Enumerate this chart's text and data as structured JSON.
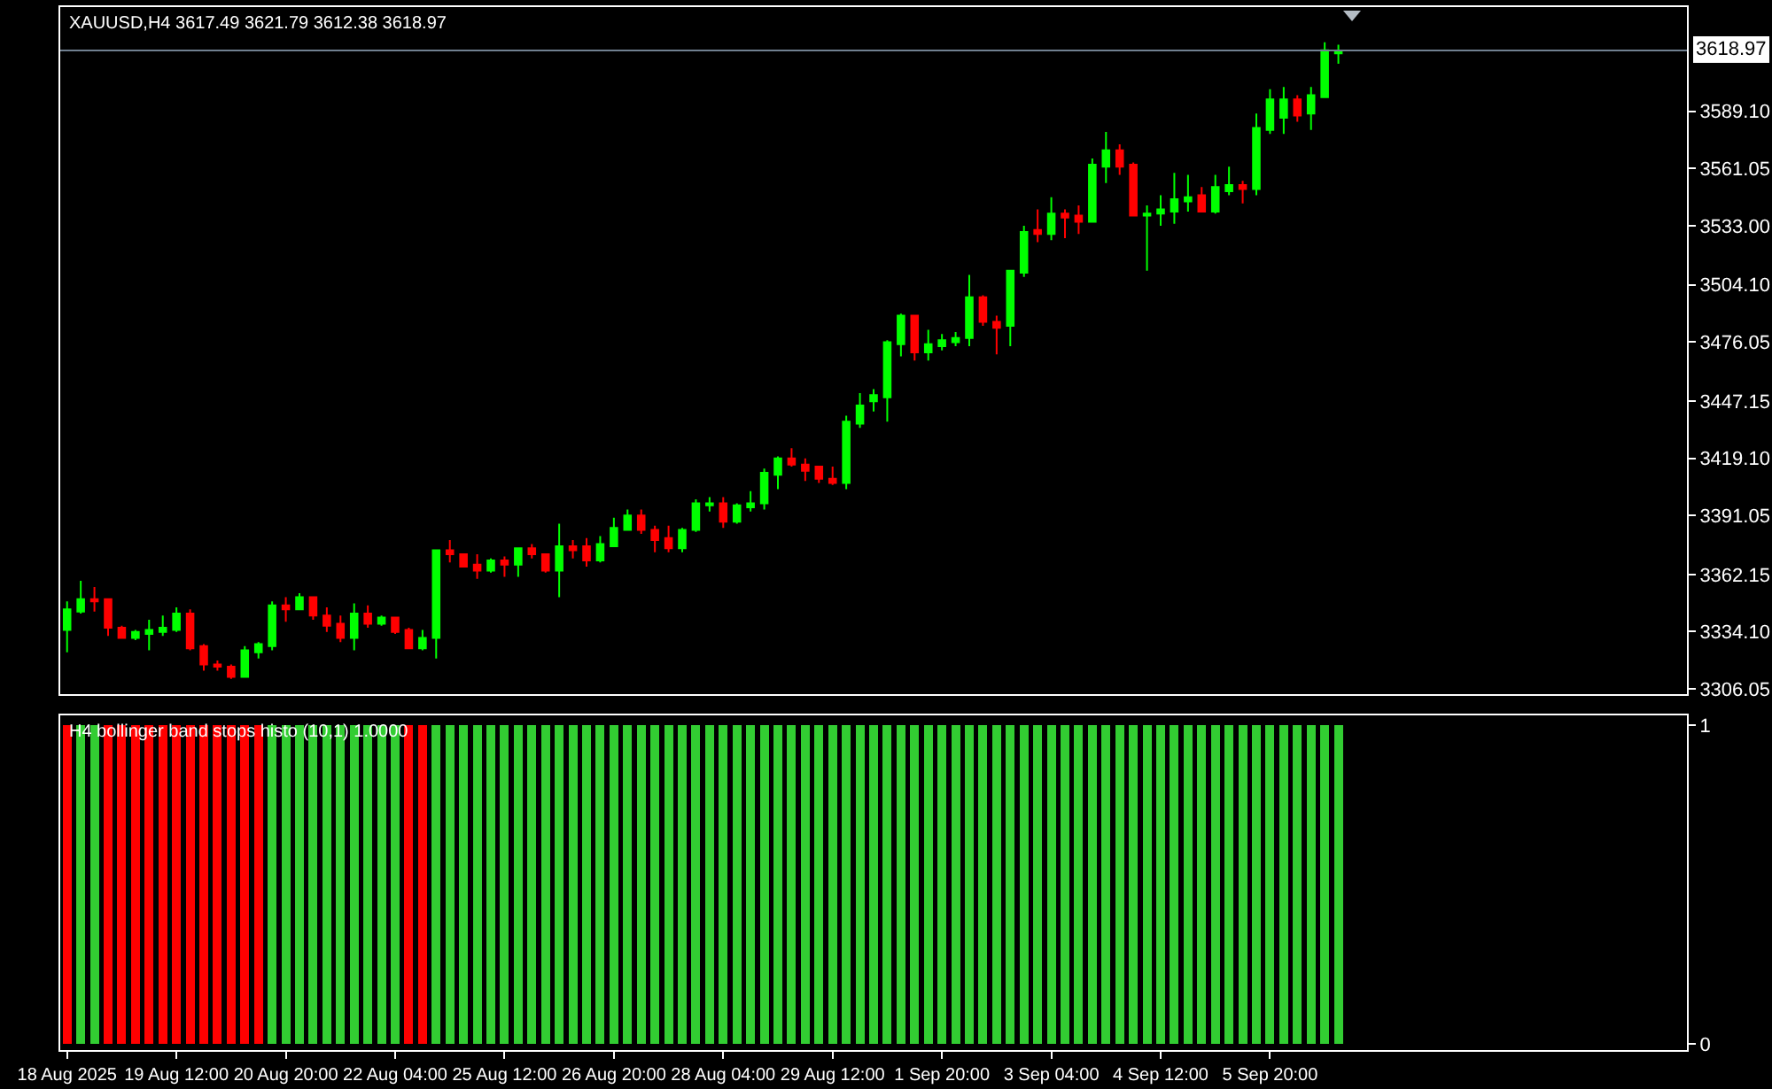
{
  "chart_data": [
    {
      "type": "candlestick",
      "title": "XAUUSD,H4 3617.49 3621.79 3612.38 3618.97",
      "categories": [
        null,
        null,
        null,
        null,
        null,
        null,
        null,
        null,
        null,
        null,
        null,
        null,
        null,
        null,
        null,
        null,
        null,
        null,
        null,
        null,
        null,
        null,
        null,
        null,
        null,
        null,
        null,
        null,
        null,
        null,
        null,
        null,
        null,
        null,
        null,
        null,
        null,
        null,
        null,
        null,
        null,
        null,
        null,
        null,
        null,
        null,
        null,
        null,
        null,
        null,
        null,
        null,
        null,
        null,
        null,
        null,
        null,
        null,
        null,
        null,
        null,
        null,
        null,
        null,
        null,
        null,
        null,
        null,
        null,
        null,
        null,
        null,
        null,
        null,
        null,
        null,
        null,
        null,
        null,
        null,
        null,
        null,
        null,
        null,
        null,
        null,
        null,
        null,
        null,
        null,
        null,
        null,
        null,
        null,
        null,
        null,
        null,
        null,
        null,
        null,
        null,
        null,
        null,
        null,
        null,
        null,
        null,
        null,
        null,
        null,
        null,
        null,
        null,
        null,
        null,
        null,
        null,
        null,
        null
      ],
      "ohlc": [
        [
          3335,
          3349,
          3324,
          3345
        ],
        [
          3344,
          3359,
          3343,
          3350
        ],
        [
          3350,
          3356,
          3344,
          3349
        ],
        [
          3350,
          3350,
          3332,
          3336
        ],
        [
          3336,
          3337,
          3331,
          3331
        ],
        [
          3331,
          3335,
          3330,
          3334
        ],
        [
          3333,
          3340,
          3325,
          3335
        ],
        [
          3334,
          3342,
          3332,
          3336
        ],
        [
          3335,
          3346,
          3334,
          3343
        ],
        [
          3343,
          3345,
          3325,
          3326
        ],
        [
          3327,
          3328,
          3315,
          3318
        ],
        [
          3318,
          3320,
          3315,
          3317
        ],
        [
          3317,
          3318,
          3311,
          3312
        ],
        [
          3312,
          3327,
          3312,
          3325
        ],
        [
          3324,
          3329,
          3321,
          3328
        ],
        [
          3327,
          3349,
          3325,
          3347
        ],
        [
          3347,
          3351,
          3339,
          3345
        ],
        [
          3345,
          3353,
          3345,
          3351
        ],
        [
          3351,
          3351,
          3340,
          3342
        ],
        [
          3342,
          3346,
          3334,
          3337
        ],
        [
          3338,
          3342,
          3329,
          3331
        ],
        [
          3331,
          3348,
          3325,
          3343
        ],
        [
          3343,
          3347,
          3336,
          3338
        ],
        [
          3338,
          3342,
          3337,
          3341
        ],
        [
          3341,
          3341,
          3333,
          3334
        ],
        [
          3335,
          3336,
          3326,
          3326
        ],
        [
          3326,
          3335,
          3325,
          3331
        ],
        [
          3331,
          3374,
          3321,
          3374
        ],
        [
          3374,
          3379,
          3368,
          3372
        ],
        [
          3372,
          3372,
          3366,
          3366
        ],
        [
          3367,
          3372,
          3360,
          3364
        ],
        [
          3364,
          3370,
          3363,
          3369
        ],
        [
          3369,
          3371,
          3361,
          3367
        ],
        [
          3367,
          3375,
          3361,
          3375
        ],
        [
          3375,
          3377,
          3370,
          3372
        ],
        [
          3372,
          3372,
          3363,
          3364
        ],
        [
          3364,
          3387,
          3351,
          3376
        ],
        [
          3376,
          3379,
          3370,
          3374
        ],
        [
          3376,
          3380,
          3366,
          3369
        ],
        [
          3369,
          3381,
          3368,
          3377
        ],
        [
          3376,
          3390,
          3376,
          3385
        ],
        [
          3384,
          3394,
          3384,
          3391
        ],
        [
          3391,
          3394,
          3382,
          3384
        ],
        [
          3384,
          3386,
          3373,
          3379
        ],
        [
          3380,
          3386,
          3373,
          3375
        ],
        [
          3375,
          3385,
          3373,
          3384
        ],
        [
          3384,
          3399,
          3383,
          3397
        ],
        [
          3396,
          3400,
          3393,
          3397
        ],
        [
          3397,
          3400,
          3385,
          3388
        ],
        [
          3388,
          3397,
          3387,
          3396
        ],
        [
          3395,
          3403,
          3393,
          3397
        ],
        [
          3397,
          3414,
          3394,
          3412
        ],
        [
          3411,
          3420,
          3404,
          3419
        ],
        [
          3419,
          3424,
          3415,
          3416
        ],
        [
          3416,
          3419,
          3408,
          3413
        ],
        [
          3415,
          3415,
          3407,
          3409
        ],
        [
          3409,
          3415,
          3406,
          3407
        ],
        [
          3407,
          3440,
          3404,
          3437
        ],
        [
          3436,
          3451,
          3434,
          3445
        ],
        [
          3447,
          3453,
          3442,
          3450
        ],
        [
          3449,
          3477,
          3437,
          3476
        ],
        [
          3475,
          3490,
          3469,
          3489
        ],
        [
          3489,
          3489,
          3467,
          3471
        ],
        [
          3471,
          3482,
          3467,
          3475
        ],
        [
          3474,
          3480,
          3472,
          3477
        ],
        [
          3476,
          3481,
          3474,
          3478
        ],
        [
          3478,
          3509,
          3474,
          3498
        ],
        [
          3498,
          3499,
          3484,
          3486
        ],
        [
          3486,
          3489,
          3470,
          3483
        ],
        [
          3484,
          3511,
          3474,
          3511
        ],
        [
          3510,
          3533,
          3508,
          3530
        ],
        [
          3531,
          3541,
          3525,
          3529
        ],
        [
          3529,
          3547,
          3526,
          3539
        ],
        [
          3539,
          3541,
          3527,
          3537
        ],
        [
          3538,
          3543,
          3529,
          3535
        ],
        [
          3535,
          3566,
          3535,
          3563
        ],
        [
          3562,
          3579,
          3554,
          3570
        ],
        [
          3570,
          3573,
          3558,
          3562
        ],
        [
          3563,
          3564,
          3538,
          3538
        ],
        [
          3538,
          3543,
          3511,
          3539
        ],
        [
          3539,
          3548,
          3533,
          3541
        ],
        [
          3540,
          3559,
          3534,
          3546
        ],
        [
          3545,
          3558,
          3540,
          3547
        ],
        [
          3548,
          3552,
          3540,
          3540
        ],
        [
          3540,
          3558,
          3539,
          3552
        ],
        [
          3550,
          3562,
          3548,
          3553
        ],
        [
          3553,
          3555,
          3544,
          3551
        ],
        [
          3551,
          3588,
          3548,
          3581
        ],
        [
          3580,
          3600,
          3578,
          3595
        ],
        [
          3586,
          3601,
          3578,
          3595
        ],
        [
          3595,
          3597,
          3584,
          3587
        ],
        [
          3588,
          3601,
          3580,
          3597
        ],
        [
          3596,
          3623,
          3596,
          3619
        ],
        [
          3617.49,
          3621.79,
          3612.38,
          3618.97
        ],
        null,
        null,
        null,
        null,
        null,
        null,
        null,
        null,
        null,
        null,
        null,
        null,
        null,
        null,
        null,
        null,
        null,
        null,
        null,
        null,
        null,
        null,
        null,
        null,
        null
      ],
      "colors": [
        "#00ff00",
        "#00ff00",
        "#ff0000",
        "#ff0000",
        "#ff0000",
        "#00ff00",
        "#00ff00",
        "#00ff00",
        "#00ff00",
        "#ff0000",
        "#ff0000",
        "#ff0000",
        "#ff0000",
        "#00ff00",
        "#00ff00",
        "#00ff00",
        "#ff0000",
        "#00ff00",
        "#ff0000",
        "#ff0000",
        "#ff0000",
        "#00ff00",
        "#ff0000",
        "#00ff00",
        "#ff0000",
        "#ff0000",
        "#00ff00",
        "#00ff00",
        "#ff0000",
        "#ff0000",
        "#ff0000",
        "#00ff00",
        "#ff0000",
        "#00ff00",
        "#ff0000",
        "#ff0000",
        "#00ff00",
        "#ff0000",
        "#ff0000",
        "#00ff00",
        "#00ff00",
        "#00ff00",
        "#ff0000",
        "#ff0000",
        "#ff0000",
        "#00ff00",
        "#00ff00",
        "#00ff00",
        "#ff0000",
        "#00ff00",
        "#00ff00",
        "#00ff00",
        "#00ff00",
        "#ff0000",
        "#ff0000",
        "#ff0000",
        "#ff0000",
        "#00ff00",
        "#00ff00",
        "#00ff00",
        "#00ff00",
        "#00ff00",
        "#ff0000",
        "#00ff00",
        "#00ff00",
        "#00ff00",
        "#00ff00",
        "#ff0000",
        "#ff0000",
        "#00ff00",
        "#00ff00",
        "#ff0000",
        "#00ff00",
        "#ff0000",
        "#ff0000",
        "#00ff00",
        "#00ff00",
        "#ff0000",
        "#ff0000",
        "#00ff00",
        "#00ff00",
        "#00ff00",
        "#00ff00",
        "#ff0000",
        "#00ff00",
        "#00ff00",
        "#ff0000",
        "#00ff00",
        "#00ff00",
        "#00ff00",
        "#ff0000",
        "#00ff00",
        "#00ff00",
        "#00ff00",
        null,
        null,
        null,
        null,
        null,
        null,
        null,
        null,
        null,
        null,
        null,
        null,
        null,
        null,
        null,
        null,
        null,
        null,
        null,
        null,
        null,
        null,
        null,
        null,
        null
      ],
      "ylim": [
        3303.5,
        3640.2
      ],
      "yticks": [
        {
          "value": 3306.05,
          "label": "3306.05"
        },
        {
          "value": 3334.1,
          "label": "3334.10"
        },
        {
          "value": 3362.15,
          "label": "3362.15"
        },
        {
          "value": 3391.05,
          "label": "3391.05"
        },
        {
          "value": 3419.1,
          "label": "3419.10"
        },
        {
          "value": 3447.15,
          "label": "3447.15"
        },
        {
          "value": 3476.05,
          "label": "3476.05"
        },
        {
          "value": 3504.1,
          "label": "3504.10"
        },
        {
          "value": 3533,
          "label": "3533.00"
        },
        {
          "value": 3561.05,
          "label": "3561.05"
        },
        {
          "value": 3589.1,
          "label": "3589.10"
        }
      ],
      "ref_lines": [
        {
          "axis": "y",
          "value": 3618.97,
          "label": "3618.97",
          "color": "#708090"
        }
      ],
      "tick_labels": "y"
    },
    {
      "type": "bar",
      "title": "H4 bollinger band stops histo (10,1) 1.0000",
      "categories": [
        "18 Aug 2025",
        null,
        null,
        null,
        null,
        null,
        null,
        null,
        "19 Aug 12:00",
        null,
        null,
        null,
        null,
        null,
        null,
        null,
        "20 Aug 20:00",
        null,
        null,
        null,
        null,
        null,
        null,
        null,
        "22 Aug 04:00",
        null,
        null,
        null,
        null,
        null,
        null,
        null,
        "25 Aug 12:00",
        null,
        null,
        null,
        null,
        null,
        null,
        null,
        "26 Aug 20:00",
        null,
        null,
        null,
        null,
        null,
        null,
        null,
        "28 Aug 04:00",
        null,
        null,
        null,
        null,
        null,
        null,
        null,
        "29 Aug 12:00",
        null,
        null,
        null,
        null,
        null,
        null,
        null,
        "1 Sep 20:00",
        null,
        null,
        null,
        null,
        null,
        null,
        null,
        "3 Sep 04:00",
        null,
        null,
        null,
        null,
        null,
        null,
        null,
        "4 Sep 12:00",
        null,
        null,
        null,
        null,
        null,
        null,
        null,
        "5 Sep 20:00",
        null,
        null,
        null,
        null,
        null,
        null,
        null,
        null,
        null,
        null,
        null,
        null,
        null,
        null,
        null,
        null,
        null,
        null,
        null,
        null,
        null,
        null,
        null,
        null,
        null,
        null,
        null,
        null,
        null,
        null
      ],
      "values": [
        1,
        1,
        1,
        1,
        1,
        1,
        1,
        1,
        1,
        1,
        1,
        1,
        1,
        1,
        1,
        1,
        1,
        1,
        1,
        1,
        1,
        1,
        1,
        1,
        1,
        1,
        1,
        1,
        1,
        1,
        1,
        1,
        1,
        1,
        1,
        1,
        1,
        1,
        1,
        1,
        1,
        1,
        1,
        1,
        1,
        1,
        1,
        1,
        1,
        1,
        1,
        1,
        1,
        1,
        1,
        1,
        1,
        1,
        1,
        1,
        1,
        1,
        1,
        1,
        1,
        1,
        1,
        1,
        1,
        1,
        1,
        1,
        1,
        1,
        1,
        1,
        1,
        1,
        1,
        1,
        1,
        1,
        1,
        1,
        1,
        1,
        1,
        1,
        1,
        1,
        1,
        1,
        1,
        1,
        null,
        null,
        null,
        null,
        null,
        null,
        null,
        null,
        null,
        null,
        null,
        null,
        null,
        null,
        null,
        null,
        null,
        null,
        null,
        null,
        null,
        null,
        null,
        null,
        null
      ],
      "colors": [
        "#ff0000",
        "#32cd32",
        "#32cd32",
        "#ff0000",
        "#ff0000",
        "#ff0000",
        "#ff0000",
        "#ff0000",
        "#ff0000",
        "#ff0000",
        "#ff0000",
        "#ff0000",
        "#ff0000",
        "#ff0000",
        "#ff0000",
        "#32cd32",
        "#32cd32",
        "#32cd32",
        "#32cd32",
        "#32cd32",
        "#32cd32",
        "#32cd32",
        "#32cd32",
        "#32cd32",
        "#32cd32",
        "#ff0000",
        "#ff0000",
        "#32cd32",
        "#32cd32",
        "#32cd32",
        "#32cd32",
        "#32cd32",
        "#32cd32",
        "#32cd32",
        "#32cd32",
        "#32cd32",
        "#32cd32",
        "#32cd32",
        "#32cd32",
        "#32cd32",
        "#32cd32",
        "#32cd32",
        "#32cd32",
        "#32cd32",
        "#32cd32",
        "#32cd32",
        "#32cd32",
        "#32cd32",
        "#32cd32",
        "#32cd32",
        "#32cd32",
        "#32cd32",
        "#32cd32",
        "#32cd32",
        "#32cd32",
        "#32cd32",
        "#32cd32",
        "#32cd32",
        "#32cd32",
        "#32cd32",
        "#32cd32",
        "#32cd32",
        "#32cd32",
        "#32cd32",
        "#32cd32",
        "#32cd32",
        "#32cd32",
        "#32cd32",
        "#32cd32",
        "#32cd32",
        "#32cd32",
        "#32cd32",
        "#32cd32",
        "#32cd32",
        "#32cd32",
        "#32cd32",
        "#32cd32",
        "#32cd32",
        "#32cd32",
        "#32cd32",
        "#32cd32",
        "#32cd32",
        "#32cd32",
        "#32cd32",
        "#32cd32",
        "#32cd32",
        "#32cd32",
        "#32cd32",
        "#32cd32",
        "#32cd32",
        "#32cd32",
        "#32cd32",
        "#32cd32",
        "#32cd32",
        null,
        null,
        null,
        null,
        null,
        null,
        null,
        null,
        null,
        null,
        null,
        null,
        null,
        null,
        null,
        null,
        null,
        null,
        null,
        null,
        null,
        null,
        null,
        null,
        null
      ],
      "ylim": [
        -0.02,
        1.03
      ],
      "yticks": [
        0,
        1
      ]
    }
  ]
}
